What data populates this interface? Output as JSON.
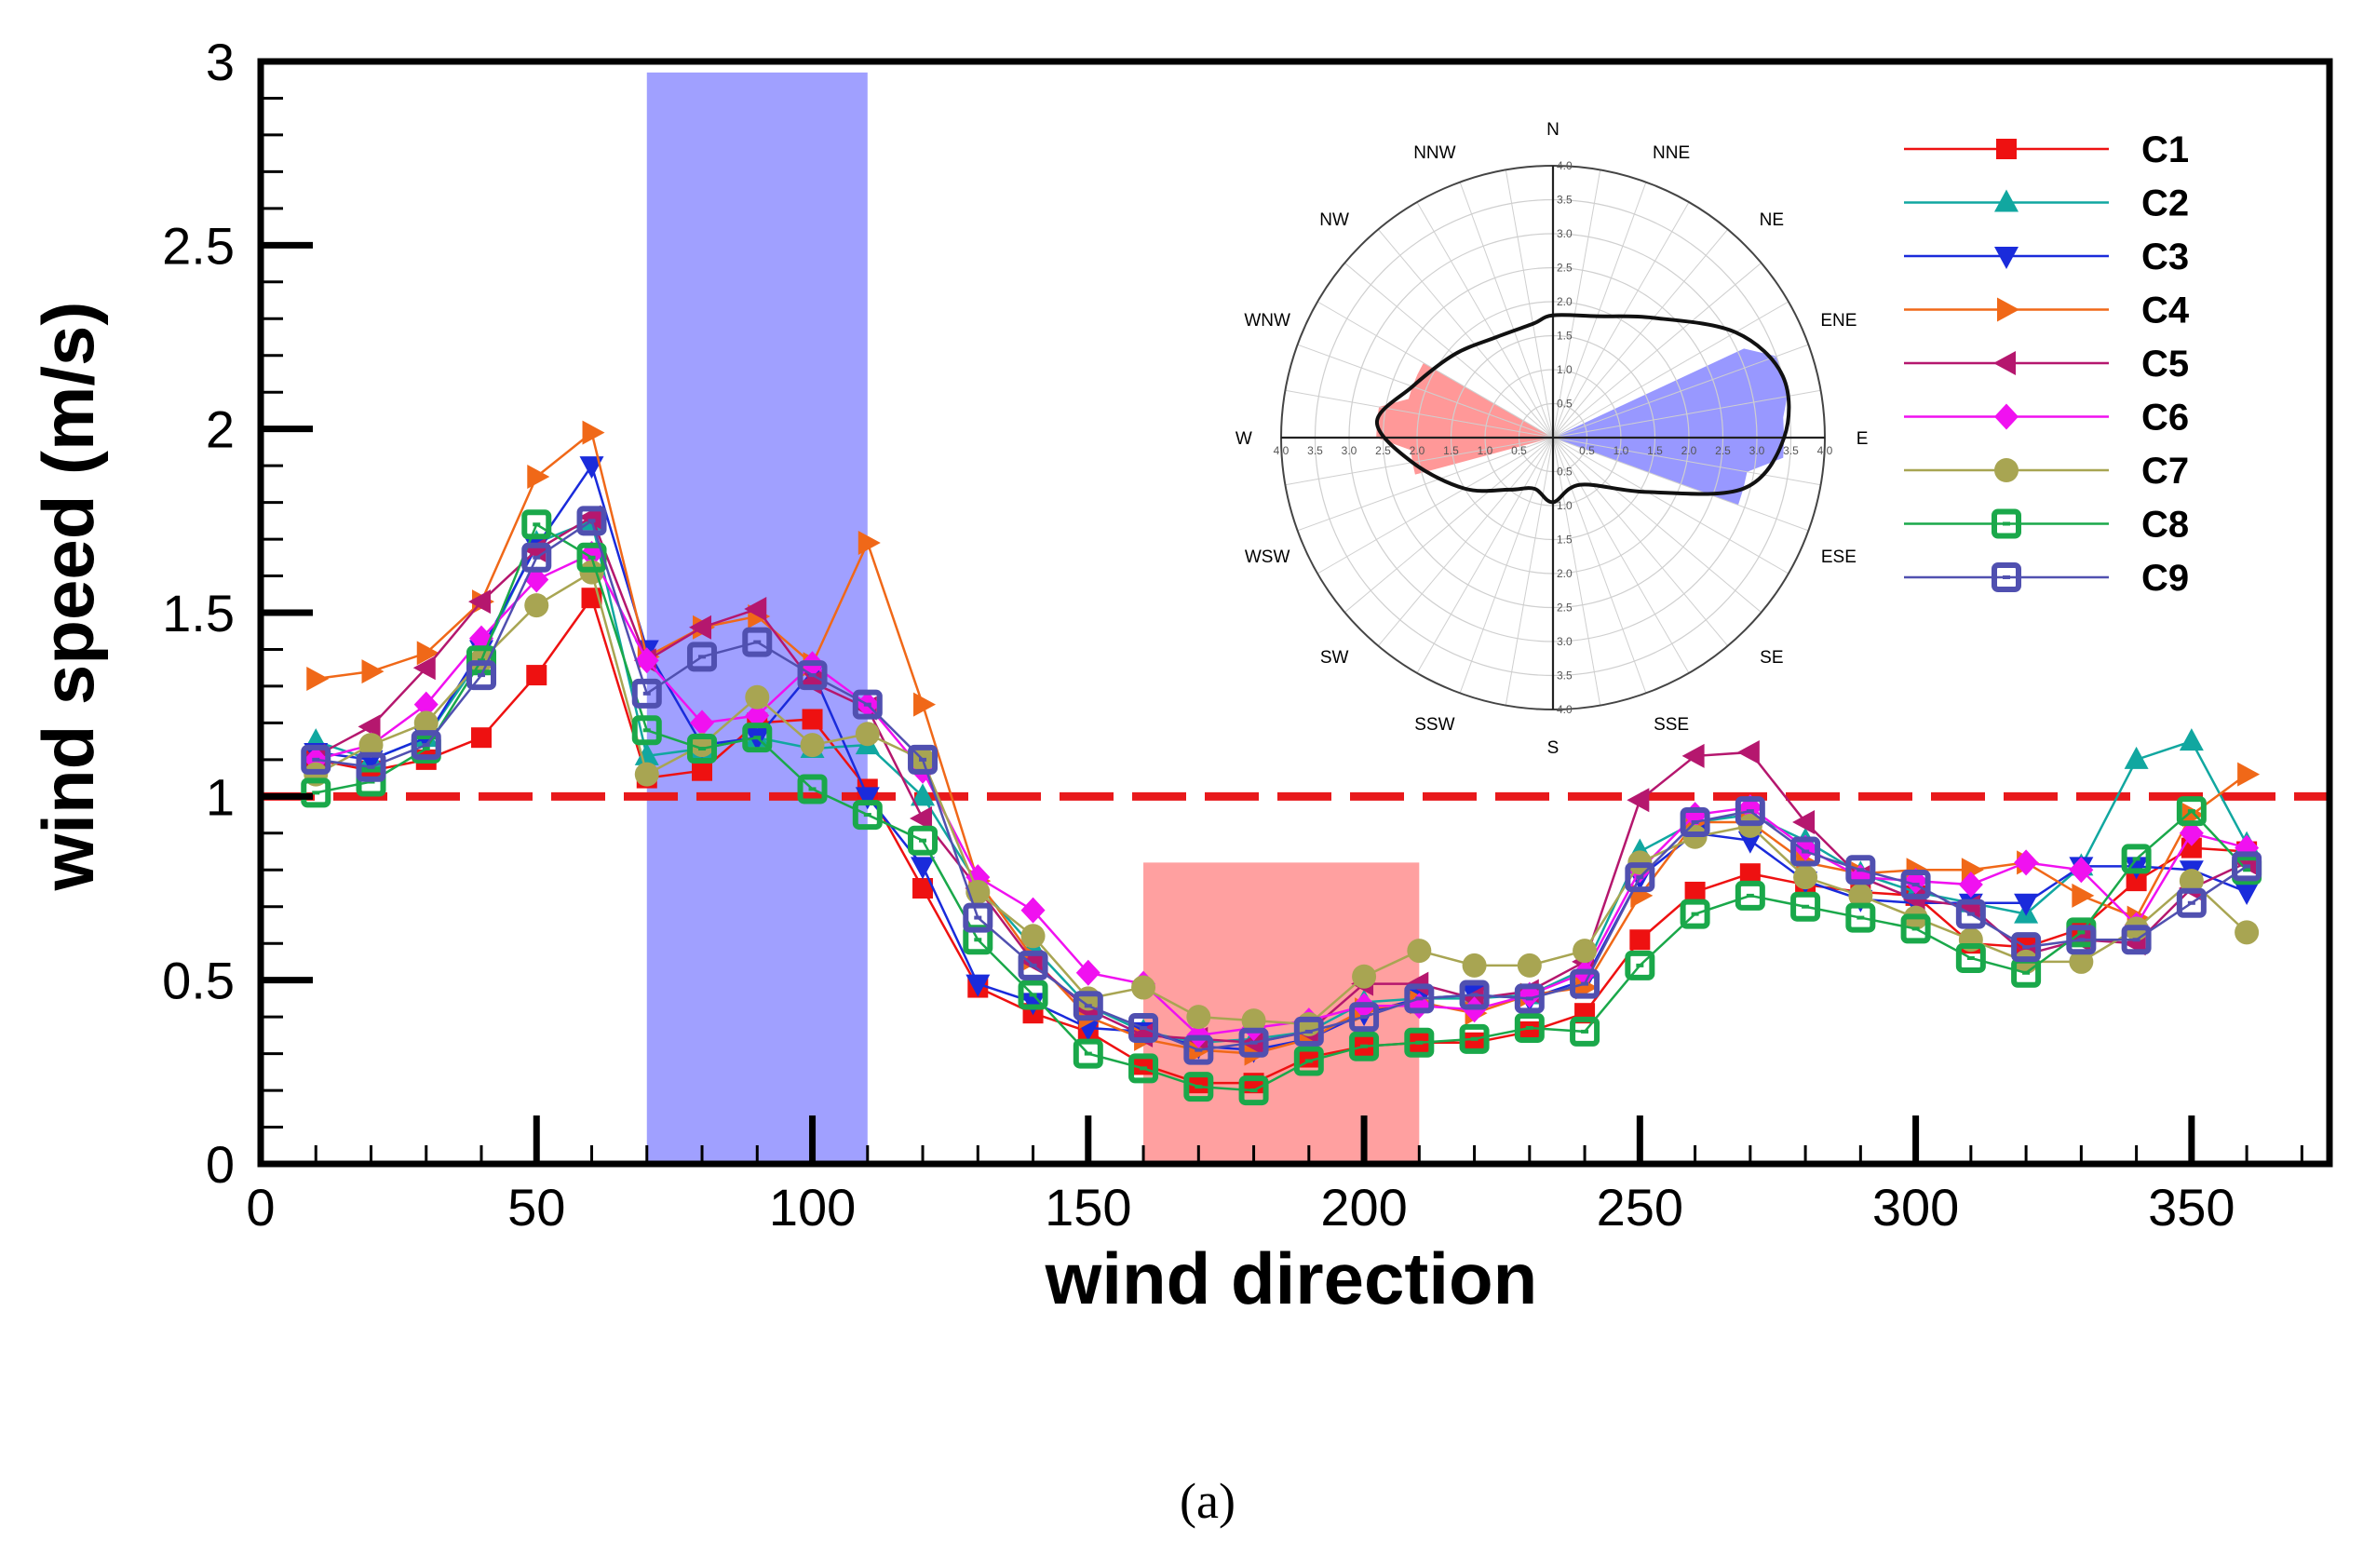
{
  "chart_data": {
    "type": "line",
    "caption": "(a)",
    "xlabel": "wind direction",
    "ylabel": "wind speed (m/s)",
    "xlim": [
      0,
      375
    ],
    "ylim": [
      0,
      3
    ],
    "xticks": [
      0,
      50,
      100,
      150,
      200,
      250,
      300,
      350
    ],
    "yticks": [
      0,
      0.5,
      1,
      1.5,
      2,
      2.5,
      3
    ],
    "ytick_labels": [
      "0",
      "0.5",
      "1",
      "1.5",
      "2",
      "2.5",
      "3"
    ],
    "reference_line": {
      "y": 1,
      "style": "dashed",
      "color": "#e8191b"
    },
    "highlight_bands": [
      {
        "x": [
          70,
          110
        ],
        "y_max": 2.97,
        "color": "#7b7bff"
      },
      {
        "x": [
          160,
          210
        ],
        "y_max": 0.82,
        "color": "#ff7b7b"
      }
    ],
    "x": [
      10,
      20,
      30,
      40,
      50,
      60,
      70,
      80,
      90,
      100,
      110,
      120,
      130,
      140,
      150,
      160,
      170,
      180,
      190,
      200,
      210,
      220,
      230,
      240,
      250,
      260,
      270,
      280,
      290,
      300,
      310,
      320,
      330,
      340,
      350,
      360
    ],
    "series": [
      {
        "name": "C1",
        "color": "#ee1111",
        "marker": "square",
        "values": [
          1.1,
          1.07,
          1.1,
          1.16,
          1.33,
          1.54,
          1.05,
          1.07,
          1.2,
          1.21,
          1.02,
          0.75,
          0.48,
          0.41,
          0.36,
          0.27,
          0.22,
          0.22,
          0.29,
          0.32,
          0.33,
          0.33,
          0.36,
          0.41,
          0.61,
          0.74,
          0.79,
          0.76,
          0.74,
          0.73,
          0.6,
          0.59,
          0.64,
          0.77,
          0.86,
          0.85
        ]
      },
      {
        "name": "C2",
        "color": "#11a7a0",
        "marker": "triangle-up",
        "values": [
          1.15,
          1.1,
          1.16,
          1.38,
          1.69,
          1.75,
          1.11,
          1.13,
          1.16,
          1.13,
          1.14,
          1.0,
          0.76,
          0.59,
          0.43,
          0.36,
          0.33,
          0.34,
          0.36,
          0.44,
          0.45,
          0.45,
          0.46,
          0.53,
          0.85,
          0.93,
          0.95,
          0.88,
          0.79,
          0.74,
          0.71,
          0.68,
          0.81,
          1.1,
          1.15,
          0.87
        ]
      },
      {
        "name": "C3",
        "color": "#1a2bdb",
        "marker": "triangle-down",
        "values": [
          1.12,
          1.1,
          1.16,
          1.4,
          1.68,
          1.9,
          1.4,
          1.14,
          1.16,
          1.34,
          1.0,
          0.81,
          0.49,
          0.44,
          0.37,
          0.36,
          0.32,
          0.31,
          0.34,
          0.41,
          0.45,
          0.46,
          0.45,
          0.5,
          0.78,
          0.9,
          0.88,
          0.77,
          0.72,
          0.71,
          0.71,
          0.71,
          0.81,
          0.81,
          0.8,
          0.74
        ]
      },
      {
        "name": "C4",
        "color": "#f06818",
        "marker": "triangle-right",
        "values": [
          1.32,
          1.34,
          1.39,
          1.53,
          1.87,
          1.99,
          1.38,
          1.46,
          1.49,
          1.36,
          1.69,
          1.25,
          0.77,
          0.56,
          0.4,
          0.34,
          0.31,
          0.3,
          0.34,
          0.42,
          0.44,
          0.41,
          0.46,
          0.48,
          0.73,
          0.93,
          0.93,
          0.82,
          0.79,
          0.8,
          0.8,
          0.82,
          0.73,
          0.67,
          0.95,
          1.06
        ]
      },
      {
        "name": "C5",
        "color": "#b5176e",
        "marker": "triangle-left",
        "values": [
          1.11,
          1.19,
          1.35,
          1.53,
          1.67,
          1.76,
          1.37,
          1.46,
          1.51,
          1.31,
          1.24,
          0.94,
          0.75,
          0.55,
          0.42,
          0.35,
          0.34,
          0.33,
          0.36,
          0.49,
          0.49,
          0.45,
          0.47,
          0.55,
          0.99,
          1.11,
          1.12,
          0.93,
          0.78,
          0.72,
          0.7,
          0.57,
          0.61,
          0.6,
          0.75,
          0.82
        ]
      },
      {
        "name": "C6",
        "color": "#f011f0",
        "marker": "diamond",
        "values": [
          1.1,
          1.14,
          1.25,
          1.43,
          1.59,
          1.66,
          1.37,
          1.2,
          1.22,
          1.36,
          1.25,
          1.07,
          0.78,
          0.69,
          0.52,
          0.49,
          0.35,
          0.37,
          0.39,
          0.43,
          0.43,
          0.42,
          0.46,
          0.52,
          0.8,
          0.95,
          0.97,
          0.86,
          0.78,
          0.77,
          0.76,
          0.82,
          0.8,
          0.65,
          0.9,
          0.86
        ]
      },
      {
        "name": "C7",
        "color": "#a8a552",
        "marker": "circle",
        "values": [
          1.06,
          1.14,
          1.2,
          1.37,
          1.52,
          1.61,
          1.06,
          1.14,
          1.27,
          1.14,
          1.17,
          1.1,
          0.74,
          0.62,
          0.45,
          0.48,
          0.4,
          0.39,
          0.38,
          0.51,
          0.58,
          0.54,
          0.54,
          0.58,
          0.82,
          0.89,
          0.92,
          0.78,
          0.73,
          0.67,
          0.61,
          0.55,
          0.55,
          0.64,
          0.77,
          0.63
        ]
      },
      {
        "name": "C8",
        "color": "#1aa84a",
        "marker": "square-open",
        "values": [
          1.01,
          1.04,
          1.13,
          1.37,
          1.74,
          1.65,
          1.18,
          1.13,
          1.16,
          1.02,
          0.95,
          0.88,
          0.61,
          0.46,
          0.3,
          0.26,
          0.21,
          0.2,
          0.28,
          0.32,
          0.33,
          0.34,
          0.37,
          0.36,
          0.54,
          0.68,
          0.73,
          0.7,
          0.67,
          0.64,
          0.56,
          0.52,
          0.63,
          0.83,
          0.96,
          0.8
        ]
      },
      {
        "name": "C9",
        "color": "#5050b0",
        "marker": "square-open",
        "values": [
          1.1,
          1.08,
          1.14,
          1.33,
          1.65,
          1.75,
          1.28,
          1.38,
          1.42,
          1.33,
          1.25,
          1.1,
          0.67,
          0.54,
          0.43,
          0.37,
          0.31,
          0.33,
          0.36,
          0.4,
          0.45,
          0.46,
          0.45,
          0.49,
          0.78,
          0.93,
          0.96,
          0.85,
          0.8,
          0.76,
          0.68,
          0.59,
          0.61,
          0.61,
          0.71,
          0.81
        ]
      }
    ],
    "legend_position": "top-right",
    "inset_wind_rose": {
      "directions": [
        "N",
        "NNE",
        "NE",
        "ENE",
        "E",
        "ESE",
        "SE",
        "SSE",
        "S",
        "SSW",
        "SW",
        "WSW",
        "W",
        "WNW",
        "NW",
        "NNW"
      ],
      "radial_max": 4.0,
      "radial_ticks": [
        "0.5",
        "1.0",
        "1.5",
        "2.0",
        "2.5",
        "3.0",
        "3.5",
        "4.0"
      ],
      "outline_radius_by_bearing_deg": [
        [
          0,
          1.8
        ],
        [
          20,
          1.9
        ],
        [
          40,
          2.3
        ],
        [
          60,
          3.1
        ],
        [
          75,
          3.5
        ],
        [
          90,
          3.4
        ],
        [
          105,
          2.9
        ],
        [
          120,
          1.6
        ],
        [
          150,
          0.8
        ],
        [
          180,
          0.95
        ],
        [
          200,
          0.8
        ],
        [
          220,
          1.0
        ],
        [
          240,
          1.5
        ],
        [
          260,
          2.1
        ],
        [
          275,
          2.6
        ],
        [
          290,
          2.2
        ],
        [
          310,
          1.9
        ],
        [
          330,
          1.7
        ],
        [
          350,
          1.7
        ]
      ],
      "sectors": [
        {
          "from_deg": 65,
          "to_deg": 110,
          "color": "#7b7bff"
        },
        {
          "from_deg": 255,
          "to_deg": 300,
          "color": "#ff7b7b"
        }
      ]
    }
  }
}
